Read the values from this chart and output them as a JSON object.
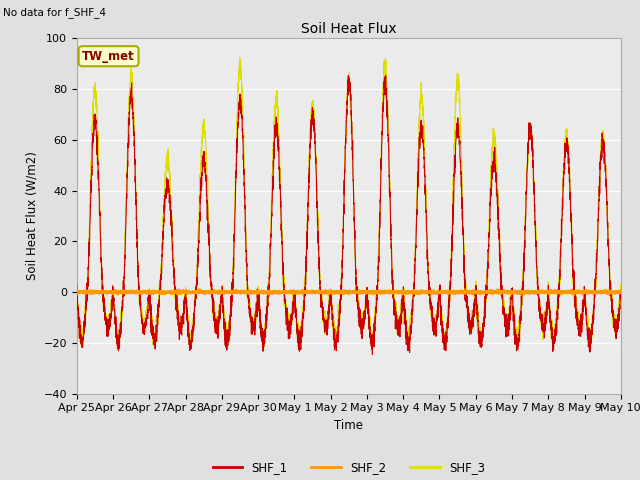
{
  "title": "Soil Heat Flux",
  "ylabel": "Soil Heat Flux (W/m2)",
  "xlabel": "Time",
  "note": "No data for f_SHF_4",
  "tw_met_label": "TW_met",
  "ylim": [
    -40,
    100
  ],
  "yticks": [
    -40,
    -20,
    0,
    20,
    40,
    60,
    80,
    100
  ],
  "x_tick_labels": [
    "Apr 25",
    "Apr 26",
    "Apr 27",
    "Apr 28",
    "Apr 29",
    "Apr 30",
    "May 1",
    "May 2",
    "May 3",
    "May 4",
    "May 5",
    "May 6",
    "May 7",
    "May 8",
    "May 9",
    "May 10"
  ],
  "colors": {
    "SHF_1": "#cc0000",
    "SHF_2": "#ff9900",
    "SHF_3": "#dddd00",
    "background": "#e0e0e0",
    "plot_bg": "#ebebeb",
    "grid": "#ffffff",
    "tw_met_box_bg": "#ffffcc",
    "tw_met_box_edge": "#aaaa00",
    "tw_met_text": "#880000"
  },
  "legend_entries": [
    "SHF_1",
    "SHF_2",
    "SHF_3"
  ],
  "num_days": 15,
  "ppd": 288,
  "shf1_peaks": [
    67,
    78,
    43,
    52,
    76,
    65,
    70,
    83,
    82,
    65,
    65,
    52,
    65,
    59,
    59
  ],
  "shf3_peaks": [
    79,
    86,
    53,
    65,
    89,
    76,
    74,
    84,
    90,
    77,
    84,
    62,
    65,
    62,
    62
  ],
  "night_min": -20
}
